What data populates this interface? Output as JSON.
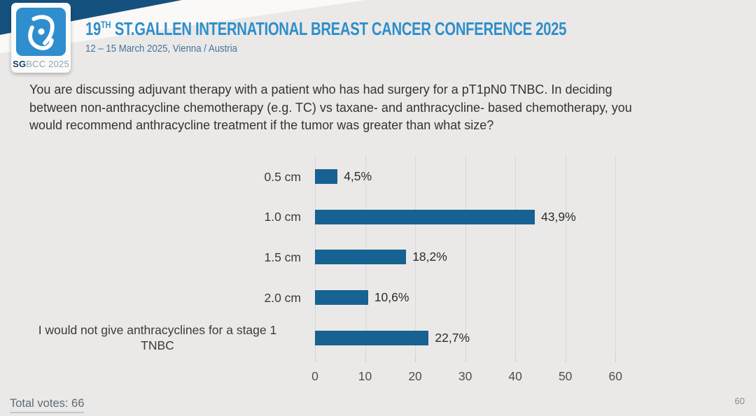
{
  "header": {
    "title_number": "19",
    "title_superscript": "TH",
    "title_rest": " ST.GALLEN INTERNATIONAL BREAST CANCER CONFERENCE 2025",
    "subtitle": "12 – 15 March 2025, Vienna / Austria",
    "logo": {
      "icon": "breast-brushstroke-icon",
      "prefix": "SG",
      "suffix": "BCC 2025"
    }
  },
  "question": "You are discussing adjuvant therapy with a patient who has had surgery for a pT1pN0 TNBC.  In deciding between non-anthracycline chemotherapy (e.g. TC) vs taxane- and anthracycline- based chemotherapy, you would recommend anthracycline treatment if the tumor was greater than what size?",
  "chart_data": {
    "type": "bar",
    "orientation": "horizontal",
    "categories": [
      "0.5 cm",
      "1.0 cm",
      "1.5 cm",
      "2.0 cm",
      "I would not give anthracyclines for a stage 1\nTNBC"
    ],
    "values": [
      4.5,
      43.9,
      18.2,
      10.6,
      22.7
    ],
    "value_labels": [
      "4,5%",
      "43,9%",
      "18,2%",
      "10,6%",
      "22,7%"
    ],
    "title": "",
    "xlabel": "",
    "ylabel": "",
    "xlim": [
      0,
      65
    ],
    "xticks": [
      0,
      10,
      20,
      30,
      40,
      50,
      60
    ],
    "bar_color": "#176292",
    "grid": true,
    "legend_position": "none"
  },
  "footer": {
    "total_votes": "Total votes: 66",
    "page_number": "60"
  },
  "colors": {
    "accent_blue": "#2f8ecb",
    "wedge_dark_blue": "#15517e",
    "bar_blue": "#176292",
    "background": "#eae9e7"
  }
}
